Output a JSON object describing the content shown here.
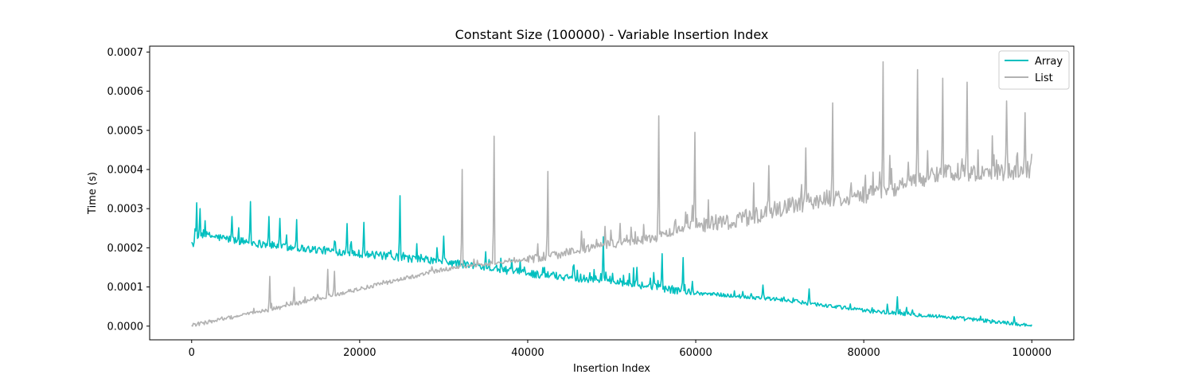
{
  "chart_data": {
    "type": "line",
    "title": "Constant Size (100000) - Variable Insertion Index",
    "xlabel": "Insertion Index",
    "ylabel": "Time (s)",
    "xlim": [
      -5000,
      105000
    ],
    "ylim": [
      -3.5e-05,
      0.000715
    ],
    "x_ticks": [
      0,
      20000,
      40000,
      60000,
      80000,
      100000
    ],
    "x_tick_labels": [
      "0",
      "20000",
      "40000",
      "60000",
      "80000",
      "100000"
    ],
    "y_ticks": [
      0,
      0.0001,
      0.0002,
      0.0003,
      0.0004,
      0.0005,
      0.0006,
      0.0007
    ],
    "y_tick_labels": [
      "0.0000",
      "0.0001",
      "0.0002",
      "0.0003",
      "0.0004",
      "0.0005",
      "0.0006",
      "0.0007"
    ],
    "grid": false,
    "legend_position": "top-right",
    "x_range": [
      0,
      100000
    ],
    "series": [
      {
        "name": "Array",
        "color": "#00bfbf",
        "trend": [
          [
            0,
            0.000205
          ],
          [
            1000,
            0.000235
          ],
          [
            5000,
            0.00022
          ],
          [
            10000,
            0.000205
          ],
          [
            20000,
            0.000185
          ],
          [
            30000,
            0.000165
          ],
          [
            40000,
            0.000135
          ],
          [
            50000,
            0.000115
          ],
          [
            60000,
            8.5e-05
          ],
          [
            70000,
            6.8e-05
          ],
          [
            80000,
            4e-05
          ],
          [
            90000,
            2.3e-05
          ],
          [
            100000,
            2e-06
          ]
        ],
        "spikes": [
          [
            600,
            0.000315
          ],
          [
            1000,
            0.0003
          ],
          [
            4800,
            0.00028
          ],
          [
            7000,
            0.000318
          ],
          [
            9200,
            0.00028
          ],
          [
            10500,
            0.000275
          ],
          [
            12500,
            0.000272
          ],
          [
            18500,
            0.000262
          ],
          [
            20500,
            0.000265
          ],
          [
            24800,
            0.000333
          ],
          [
            30000,
            0.00023
          ],
          [
            35000,
            0.00019
          ],
          [
            42000,
            0.00015
          ],
          [
            49000,
            0.000228
          ],
          [
            53000,
            0.00015
          ],
          [
            56000,
            0.000185
          ],
          [
            58500,
            0.000175
          ],
          [
            68000,
            0.000105
          ],
          [
            73500,
            9.5e-05
          ],
          [
            84000,
            7.5e-05
          ]
        ]
      },
      {
        "name": "List",
        "color": "#b2b2b2",
        "trend": [
          [
            0,
            2e-06
          ],
          [
            10000,
            4.5e-05
          ],
          [
            20000,
            9.5e-05
          ],
          [
            30000,
            0.000145
          ],
          [
            40000,
            0.00017
          ],
          [
            45000,
            0.00019
          ],
          [
            50000,
            0.00021
          ],
          [
            55000,
            0.000225
          ],
          [
            60000,
            0.00026
          ],
          [
            65000,
            0.00027
          ],
          [
            70000,
            0.0003
          ],
          [
            75000,
            0.000325
          ],
          [
            80000,
            0.000335
          ],
          [
            85000,
            0.00036
          ],
          [
            88000,
            0.000385
          ],
          [
            90000,
            0.000395
          ],
          [
            95000,
            0.00039
          ],
          [
            100000,
            0.0004
          ]
        ],
        "spikes": [
          [
            9300,
            0.000127
          ],
          [
            12200,
            9.9e-05
          ],
          [
            16200,
            0.000145
          ],
          [
            17000,
            0.00014
          ],
          [
            32200,
            0.0004
          ],
          [
            36000,
            0.000485
          ],
          [
            42400,
            0.000395
          ],
          [
            55600,
            0.000537
          ],
          [
            59900,
            0.000495
          ],
          [
            68700,
            0.00041
          ],
          [
            73100,
            0.000455
          ],
          [
            76300,
            0.00057
          ],
          [
            82300,
            0.000675
          ],
          [
            86400,
            0.000655
          ],
          [
            89400,
            0.000633
          ],
          [
            92300,
            0.000623
          ],
          [
            97000,
            0.000575
          ],
          [
            99200,
            0.000545
          ]
        ],
        "end_value": 0.00044
      }
    ]
  }
}
